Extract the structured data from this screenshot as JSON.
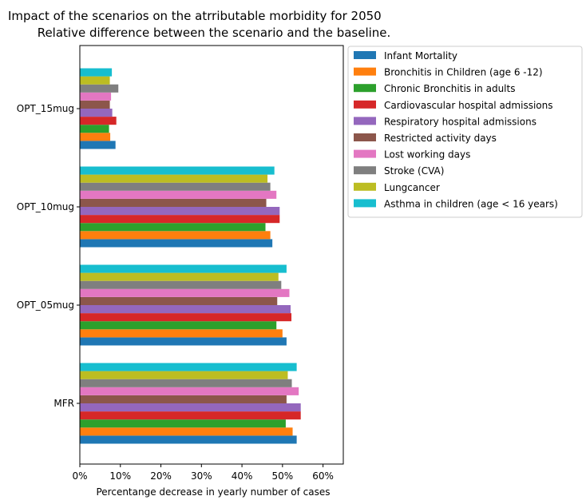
{
  "chart_data": {
    "type": "bar",
    "orientation": "horizontal",
    "title": "Impact of the scenarios on the atrributable morbidity for 2050",
    "subtitle": "Relative difference between the scenario and the baseline.",
    "xlabel": "Percentange decrease in yearly number of cases",
    "ylabel": "",
    "xlim": [
      0,
      0.65
    ],
    "x_ticks": [
      0,
      0.1,
      0.2,
      0.3,
      0.4,
      0.5,
      0.6
    ],
    "x_tick_labels": [
      "0%",
      "10%",
      "20%",
      "30%",
      "40%",
      "50%",
      "60%"
    ],
    "categories": [
      "MFR",
      "OPT_05mug",
      "OPT_10mug",
      "OPT_15mug"
    ],
    "grid": false,
    "legend_position": "outside-right-top",
    "series": [
      {
        "name": "Infant Mortality",
        "color": "#1f77b4",
        "values": [
          0.535,
          0.51,
          0.475,
          0.088
        ]
      },
      {
        "name": "Bronchitis in Children (age 6 -12)",
        "color": "#ff7f0e",
        "values": [
          0.525,
          0.5,
          0.47,
          0.075
        ]
      },
      {
        "name": "Chronic Bronchitis in adults",
        "color": "#2ca02c",
        "values": [
          0.508,
          0.485,
          0.458,
          0.072
        ]
      },
      {
        "name": "Cardiovascular hospital admissions",
        "color": "#d62728",
        "values": [
          0.545,
          0.522,
          0.493,
          0.09
        ]
      },
      {
        "name": "Respiratory hospital admissions",
        "color": "#9467bd",
        "values": [
          0.545,
          0.52,
          0.493,
          0.08
        ]
      },
      {
        "name": "Restricted activity days",
        "color": "#8c564b",
        "values": [
          0.51,
          0.487,
          0.46,
          0.074
        ]
      },
      {
        "name": "Lost working days",
        "color": "#e377c2",
        "values": [
          0.54,
          0.517,
          0.485,
          0.077
        ]
      },
      {
        "name": "Stroke (CVA)",
        "color": "#7f7f7f",
        "values": [
          0.523,
          0.497,
          0.47,
          0.095
        ]
      },
      {
        "name": "Lungcancer",
        "color": "#bcbd22",
        "values": [
          0.513,
          0.49,
          0.463,
          0.074
        ]
      },
      {
        "name": "Asthma in children (age < 16 years)",
        "color": "#17becf",
        "values": [
          0.535,
          0.51,
          0.48,
          0.079
        ]
      }
    ]
  }
}
